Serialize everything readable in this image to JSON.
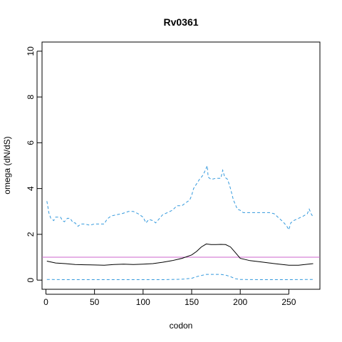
{
  "chart_data": {
    "type": "line",
    "title": "Rv0361",
    "xlabel": "codon",
    "ylabel": "omega (dN/dS)",
    "xlim": [
      -4,
      282
    ],
    "ylim": [
      -0.4,
      10.4
    ],
    "x_ticks": [
      0,
      50,
      100,
      150,
      200,
      250
    ],
    "y_ticks": [
      0,
      2,
      4,
      6,
      8,
      10
    ],
    "grid": false,
    "legend": "none",
    "reference_line": {
      "y": 1,
      "color": "#cc66cc"
    },
    "series": [
      {
        "role": "upper",
        "color": "#3399dd",
        "dash": "dashed",
        "points": [
          [
            1,
            3.45
          ],
          [
            2,
            3.2
          ],
          [
            3,
            2.95
          ],
          [
            5,
            2.7
          ],
          [
            8,
            2.6
          ],
          [
            10,
            2.75
          ],
          [
            15,
            2.75
          ],
          [
            17,
            2.6
          ],
          [
            19,
            2.55
          ],
          [
            22,
            2.7
          ],
          [
            25,
            2.7
          ],
          [
            28,
            2.5
          ],
          [
            30,
            2.5
          ],
          [
            33,
            2.35
          ],
          [
            36,
            2.45
          ],
          [
            40,
            2.45
          ],
          [
            45,
            2.4
          ],
          [
            50,
            2.45
          ],
          [
            55,
            2.45
          ],
          [
            60,
            2.45
          ],
          [
            62,
            2.6
          ],
          [
            64,
            2.7
          ],
          [
            67,
            2.8
          ],
          [
            72,
            2.85
          ],
          [
            78,
            2.9
          ],
          [
            85,
            3.0
          ],
          [
            90,
            3.0
          ],
          [
            95,
            2.9
          ],
          [
            100,
            2.75
          ],
          [
            103,
            2.5
          ],
          [
            106,
            2.65
          ],
          [
            110,
            2.6
          ],
          [
            113,
            2.5
          ],
          [
            117,
            2.7
          ],
          [
            120,
            2.85
          ],
          [
            125,
            2.95
          ],
          [
            130,
            3.05
          ],
          [
            135,
            3.25
          ],
          [
            140,
            3.25
          ],
          [
            143,
            3.35
          ],
          [
            148,
            3.5
          ],
          [
            150,
            3.7
          ],
          [
            152,
            4.0
          ],
          [
            155,
            4.2
          ],
          [
            158,
            4.4
          ],
          [
            161,
            4.55
          ],
          [
            163,
            4.7
          ],
          [
            165,
            4.9
          ],
          [
            166,
            5.0
          ],
          [
            167,
            4.5
          ],
          [
            170,
            4.4
          ],
          [
            175,
            4.45
          ],
          [
            180,
            4.45
          ],
          [
            182,
            4.8
          ],
          [
            184,
            4.5
          ],
          [
            187,
            4.4
          ],
          [
            190,
            4.0
          ],
          [
            193,
            3.5
          ],
          [
            197,
            3.1
          ],
          [
            200,
            3.05
          ],
          [
            203,
            2.95
          ],
          [
            210,
            2.95
          ],
          [
            220,
            2.95
          ],
          [
            230,
            2.95
          ],
          [
            235,
            2.9
          ],
          [
            240,
            2.7
          ],
          [
            244,
            2.55
          ],
          [
            248,
            2.35
          ],
          [
            250,
            2.2
          ],
          [
            252,
            2.5
          ],
          [
            255,
            2.6
          ],
          [
            260,
            2.7
          ],
          [
            265,
            2.8
          ],
          [
            269,
            2.9
          ],
          [
            271,
            3.1
          ],
          [
            273,
            2.9
          ],
          [
            275,
            2.75
          ]
        ]
      },
      {
        "role": "estimate",
        "color": "#000000",
        "dash": "solid",
        "points": [
          [
            1,
            0.83
          ],
          [
            10,
            0.75
          ],
          [
            20,
            0.72
          ],
          [
            30,
            0.68
          ],
          [
            40,
            0.67
          ],
          [
            50,
            0.66
          ],
          [
            60,
            0.65
          ],
          [
            70,
            0.68
          ],
          [
            80,
            0.7
          ],
          [
            90,
            0.68
          ],
          [
            100,
            0.7
          ],
          [
            110,
            0.72
          ],
          [
            120,
            0.78
          ],
          [
            130,
            0.85
          ],
          [
            140,
            0.95
          ],
          [
            150,
            1.1
          ],
          [
            155,
            1.25
          ],
          [
            160,
            1.45
          ],
          [
            165,
            1.58
          ],
          [
            170,
            1.55
          ],
          [
            175,
            1.55
          ],
          [
            180,
            1.56
          ],
          [
            185,
            1.55
          ],
          [
            190,
            1.45
          ],
          [
            195,
            1.2
          ],
          [
            200,
            0.95
          ],
          [
            210,
            0.85
          ],
          [
            220,
            0.8
          ],
          [
            230,
            0.75
          ],
          [
            240,
            0.7
          ],
          [
            250,
            0.65
          ],
          [
            260,
            0.65
          ],
          [
            270,
            0.7
          ],
          [
            275,
            0.72
          ]
        ]
      },
      {
        "role": "lower",
        "color": "#3399dd",
        "dash": "dashed",
        "points": [
          [
            1,
            0.03
          ],
          [
            20,
            0.02
          ],
          [
            50,
            0.02
          ],
          [
            80,
            0.02
          ],
          [
            100,
            0.02
          ],
          [
            120,
            0.02
          ],
          [
            140,
            0.04
          ],
          [
            150,
            0.08
          ],
          [
            155,
            0.15
          ],
          [
            160,
            0.2
          ],
          [
            165,
            0.25
          ],
          [
            180,
            0.25
          ],
          [
            185,
            0.22
          ],
          [
            190,
            0.15
          ],
          [
            195,
            0.06
          ],
          [
            200,
            0.03
          ],
          [
            220,
            0.02
          ],
          [
            250,
            0.02
          ],
          [
            275,
            0.03
          ]
        ]
      }
    ]
  }
}
